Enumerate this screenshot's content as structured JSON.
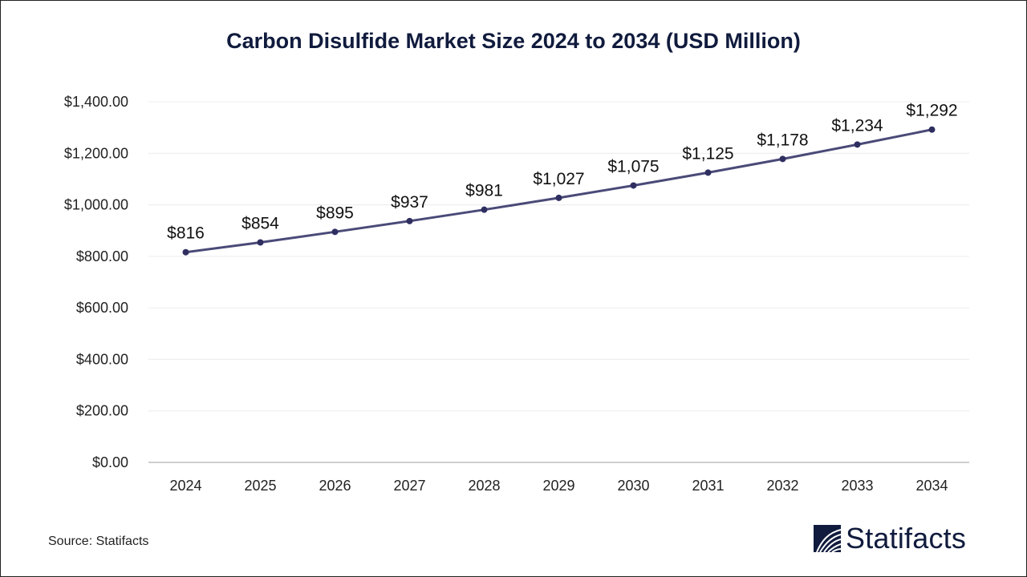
{
  "chart_data": {
    "type": "line",
    "title": "Carbon Disulfide Market Size 2024 to 2034 (USD Million)",
    "xlabel": "",
    "ylabel": "",
    "categories": [
      "2024",
      "2025",
      "2026",
      "2027",
      "2028",
      "2029",
      "2030",
      "2031",
      "2032",
      "2033",
      "2034"
    ],
    "series": [
      {
        "name": "Market Size (USD Million)",
        "values": [
          816,
          854,
          895,
          937,
          981,
          1027,
          1075,
          1125,
          1178,
          1234,
          1292
        ],
        "labels": [
          "$816",
          "$854",
          "$895",
          "$937",
          "$981",
          "$1,027",
          "$1,075",
          "$1,125",
          "$1,178",
          "$1,234",
          "$1,292"
        ],
        "color": "#4a4a78"
      }
    ],
    "ylim": [
      0,
      1400
    ],
    "yticks": [
      0,
      200,
      400,
      600,
      800,
      1000,
      1200,
      1400
    ],
    "ytick_labels": [
      "$0.00",
      "$200.00",
      "$400.00",
      "$600.00",
      "$800.00",
      "$1,000.00",
      "$1,200.00",
      "$1,400.00"
    ],
    "grid": true,
    "legend": "none"
  },
  "footer": {
    "source": "Source: Statifacts",
    "brand": "Statifacts"
  },
  "colors": {
    "title": "#101b3d",
    "line": "#4a4a78",
    "marker": "#2e2e60",
    "grid": "#ececec",
    "axis": "#bfbfbf"
  }
}
